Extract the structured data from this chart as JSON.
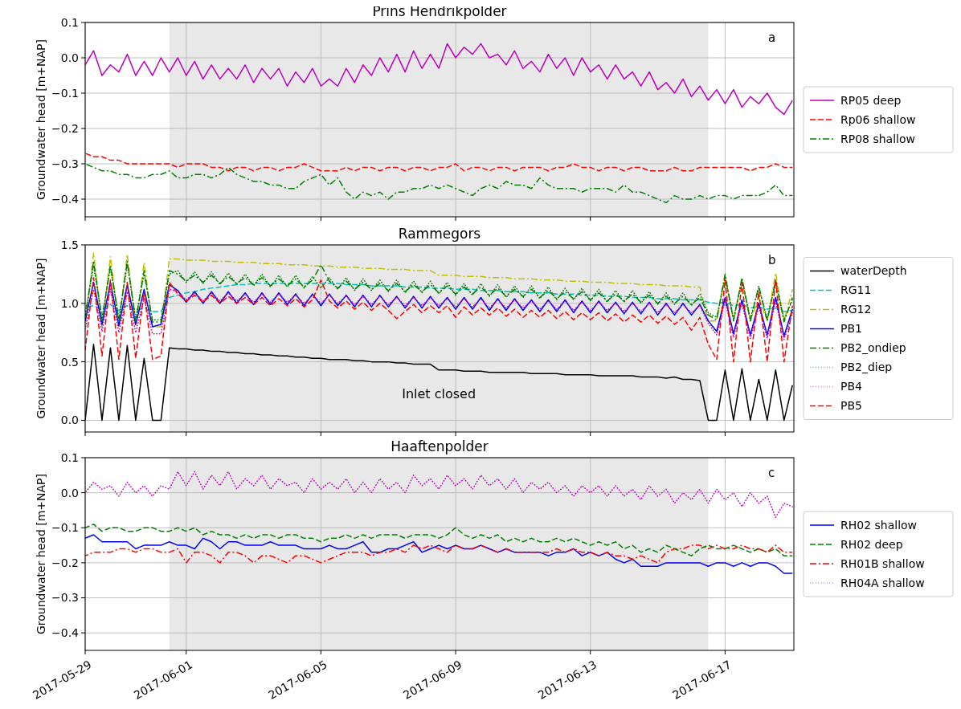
{
  "chart_data": [
    {
      "type": "line",
      "title": "Prins Hendrikpolder",
      "ylabel": "Groundwater head [m+NAP]",
      "annotations": [
        "a"
      ],
      "x": [
        "2017-05-29T00:00",
        "2017-05-29T06:00",
        "2017-05-29T12:00",
        "2017-05-29T18:00",
        "2017-05-30T00:00",
        "2017-05-30T06:00",
        "2017-05-30T12:00",
        "2017-05-30T18:00",
        "2017-05-31T00:00",
        "2017-05-31T06:00",
        "2017-05-31T12:00",
        "2017-05-31T18:00",
        "2017-06-01T00:00",
        "2017-06-01T06:00",
        "2017-06-01T12:00",
        "2017-06-01T18:00",
        "2017-06-02T00:00",
        "2017-06-02T06:00",
        "2017-06-02T12:00",
        "2017-06-02T18:00",
        "2017-06-03T00:00",
        "2017-06-03T06:00",
        "2017-06-03T12:00",
        "2017-06-03T18:00",
        "2017-06-04T00:00",
        "2017-06-04T06:00",
        "2017-06-04T12:00",
        "2017-06-04T18:00",
        "2017-06-05T00:00",
        "2017-06-05T06:00",
        "2017-06-05T12:00",
        "2017-06-05T18:00",
        "2017-06-06T00:00",
        "2017-06-06T06:00",
        "2017-06-06T12:00",
        "2017-06-06T18:00",
        "2017-06-07T00:00",
        "2017-06-07T06:00",
        "2017-06-07T12:00",
        "2017-06-07T18:00",
        "2017-06-08T00:00",
        "2017-06-08T06:00",
        "2017-06-08T12:00",
        "2017-06-08T18:00",
        "2017-06-09T00:00",
        "2017-06-09T06:00",
        "2017-06-09T12:00",
        "2017-06-09T18:00",
        "2017-06-10T00:00",
        "2017-06-10T06:00",
        "2017-06-10T12:00",
        "2017-06-10T18:00",
        "2017-06-11T00:00",
        "2017-06-11T06:00",
        "2017-06-11T12:00",
        "2017-06-11T18:00",
        "2017-06-12T00:00",
        "2017-06-12T06:00",
        "2017-06-12T12:00",
        "2017-06-12T18:00",
        "2017-06-13T00:00",
        "2017-06-13T06:00",
        "2017-06-13T12:00",
        "2017-06-13T18:00",
        "2017-06-14T00:00",
        "2017-06-14T06:00",
        "2017-06-14T12:00",
        "2017-06-14T18:00",
        "2017-06-15T00:00",
        "2017-06-15T06:00",
        "2017-06-15T12:00",
        "2017-06-15T18:00",
        "2017-06-16T00:00",
        "2017-06-16T06:00",
        "2017-06-16T12:00",
        "2017-06-16T18:00",
        "2017-06-17T00:00",
        "2017-06-17T06:00",
        "2017-06-17T12:00",
        "2017-06-17T18:00",
        "2017-06-18T00:00",
        "2017-06-18T06:00",
        "2017-06-18T12:00",
        "2017-06-18T18:00",
        "2017-06-19T00:00"
      ],
      "series": [
        {
          "name": "RP05 deep",
          "color": "#bf00bf",
          "line_style": "solid",
          "values": [
            -0.02,
            0.02,
            -0.05,
            -0.02,
            -0.04,
            0.01,
            -0.05,
            -0.01,
            -0.05,
            0.0,
            -0.04,
            0.0,
            -0.05,
            -0.01,
            -0.06,
            -0.02,
            -0.06,
            -0.03,
            -0.06,
            -0.02,
            -0.07,
            -0.03,
            -0.06,
            -0.03,
            -0.08,
            -0.04,
            -0.07,
            -0.03,
            -0.08,
            -0.06,
            -0.08,
            -0.03,
            -0.07,
            -0.02,
            -0.05,
            0.0,
            -0.04,
            0.01,
            -0.04,
            0.02,
            -0.03,
            0.01,
            -0.03,
            0.04,
            0.0,
            0.03,
            0.01,
            0.04,
            0.0,
            0.01,
            -0.02,
            0.02,
            -0.03,
            -0.01,
            -0.04,
            0.01,
            -0.03,
            0.0,
            -0.05,
            0.0,
            -0.04,
            -0.02,
            -0.06,
            -0.02,
            -0.06,
            -0.04,
            -0.08,
            -0.04,
            -0.09,
            -0.07,
            -0.1,
            -0.06,
            -0.11,
            -0.08,
            -0.12,
            -0.09,
            -0.13,
            -0.09,
            -0.14,
            -0.11,
            -0.13,
            -0.1,
            -0.14,
            -0.16,
            -0.12
          ]
        },
        {
          "name": "Rp06 shallow",
          "color": "#ff0000",
          "line_style": "dashed",
          "values": [
            -0.27,
            -0.28,
            -0.28,
            -0.29,
            -0.29,
            -0.3,
            -0.3,
            -0.3,
            -0.3,
            -0.3,
            -0.3,
            -0.31,
            -0.3,
            -0.3,
            -0.3,
            -0.31,
            -0.31,
            -0.32,
            -0.31,
            -0.31,
            -0.32,
            -0.31,
            -0.31,
            -0.32,
            -0.31,
            -0.31,
            -0.3,
            -0.31,
            -0.32,
            -0.32,
            -0.32,
            -0.31,
            -0.32,
            -0.31,
            -0.31,
            -0.32,
            -0.31,
            -0.31,
            -0.32,
            -0.31,
            -0.31,
            -0.32,
            -0.31,
            -0.31,
            -0.3,
            -0.32,
            -0.31,
            -0.31,
            -0.32,
            -0.31,
            -0.31,
            -0.32,
            -0.31,
            -0.31,
            -0.31,
            -0.32,
            -0.31,
            -0.31,
            -0.3,
            -0.31,
            -0.31,
            -0.32,
            -0.31,
            -0.31,
            -0.32,
            -0.31,
            -0.31,
            -0.32,
            -0.32,
            -0.32,
            -0.31,
            -0.32,
            -0.32,
            -0.31,
            -0.31,
            -0.31,
            -0.31,
            -0.31,
            -0.31,
            -0.32,
            -0.31,
            -0.31,
            -0.3,
            -0.31,
            -0.31
          ]
        },
        {
          "name": "RP08 shallow",
          "color": "#008000",
          "line_style": "dashdot",
          "values": [
            -0.3,
            -0.31,
            -0.32,
            -0.32,
            -0.33,
            -0.33,
            -0.34,
            -0.34,
            -0.33,
            -0.33,
            -0.32,
            -0.34,
            -0.34,
            -0.33,
            -0.33,
            -0.34,
            -0.33,
            -0.31,
            -0.33,
            -0.34,
            -0.35,
            -0.35,
            -0.36,
            -0.36,
            -0.37,
            -0.37,
            -0.35,
            -0.34,
            -0.33,
            -0.36,
            -0.34,
            -0.38,
            -0.4,
            -0.38,
            -0.39,
            -0.38,
            -0.4,
            -0.38,
            -0.38,
            -0.37,
            -0.37,
            -0.36,
            -0.37,
            -0.36,
            -0.37,
            -0.38,
            -0.39,
            -0.37,
            -0.36,
            -0.37,
            -0.35,
            -0.36,
            -0.36,
            -0.37,
            -0.34,
            -0.36,
            -0.37,
            -0.37,
            -0.37,
            -0.38,
            -0.37,
            -0.37,
            -0.37,
            -0.38,
            -0.36,
            -0.38,
            -0.38,
            -0.39,
            -0.4,
            -0.41,
            -0.39,
            -0.4,
            -0.4,
            -0.39,
            -0.4,
            -0.39,
            -0.39,
            -0.4,
            -0.39,
            -0.39,
            -0.39,
            -0.38,
            -0.36,
            -0.39,
            -0.39
          ]
        }
      ],
      "xlim": [
        "2017-05-29T00:00",
        "2017-06-19T01:00"
      ],
      "ylim": [
        -0.45,
        0.1
      ],
      "xticks": [
        {
          "value": "2017-05-29",
          "label": null
        },
        {
          "value": "2017-06-01",
          "label": null
        },
        {
          "value": "2017-06-05",
          "label": null
        },
        {
          "value": "2017-06-09",
          "label": null
        },
        {
          "value": "2017-06-13",
          "label": null
        },
        {
          "value": "2017-06-17",
          "label": null
        }
      ],
      "yticks": [
        {
          "value": -0.4,
          "label": "−0.4"
        },
        {
          "value": -0.3,
          "label": "−0.3"
        },
        {
          "value": -0.2,
          "label": "−0.2"
        },
        {
          "value": -0.1,
          "label": "−0.1"
        },
        {
          "value": 0,
          "label": "0.0"
        },
        {
          "value": 0.1,
          "label": "0.1"
        }
      ],
      "bands": [
        {
          "axis": "x",
          "from": "2017-05-31T12:00",
          "to": "2017-06-16T12:00",
          "color": "#e8e8e8"
        }
      ],
      "grid": true,
      "legend": "right",
      "tick_labels": "y"
    },
    {
      "type": "line",
      "title": "Rammegors",
      "ylabel": "Groundwater head [m+NAP]",
      "annotations": [
        "b",
        "Inlet closed"
      ],
      "x": [
        "2017-05-29T00:00",
        "2017-05-29T06:00",
        "2017-05-29T12:00",
        "2017-05-29T18:00",
        "2017-05-30T00:00",
        "2017-05-30T06:00",
        "2017-05-30T12:00",
        "2017-05-30T18:00",
        "2017-05-31T00:00",
        "2017-05-31T06:00",
        "2017-05-31T12:00",
        "2017-05-31T18:00",
        "2017-06-01T00:00",
        "2017-06-01T06:00",
        "2017-06-01T12:00",
        "2017-06-01T18:00",
        "2017-06-02T00:00",
        "2017-06-02T06:00",
        "2017-06-02T12:00",
        "2017-06-02T18:00",
        "2017-06-03T00:00",
        "2017-06-03T06:00",
        "2017-06-03T12:00",
        "2017-06-03T18:00",
        "2017-06-04T00:00",
        "2017-06-04T06:00",
        "2017-06-04T12:00",
        "2017-06-04T18:00",
        "2017-06-05T00:00",
        "2017-06-05T06:00",
        "2017-06-05T12:00",
        "2017-06-05T18:00",
        "2017-06-06T00:00",
        "2017-06-06T06:00",
        "2017-06-06T12:00",
        "2017-06-06T18:00",
        "2017-06-07T00:00",
        "2017-06-07T06:00",
        "2017-06-07T12:00",
        "2017-06-07T18:00",
        "2017-06-08T00:00",
        "2017-06-08T06:00",
        "2017-06-08T12:00",
        "2017-06-08T18:00",
        "2017-06-09T00:00",
        "2017-06-09T06:00",
        "2017-06-09T12:00",
        "2017-06-09T18:00",
        "2017-06-10T00:00",
        "2017-06-10T06:00",
        "2017-06-10T12:00",
        "2017-06-10T18:00",
        "2017-06-11T00:00",
        "2017-06-11T06:00",
        "2017-06-11T12:00",
        "2017-06-11T18:00",
        "2017-06-12T00:00",
        "2017-06-12T06:00",
        "2017-06-12T12:00",
        "2017-06-12T18:00",
        "2017-06-13T00:00",
        "2017-06-13T06:00",
        "2017-06-13T12:00",
        "2017-06-13T18:00",
        "2017-06-14T00:00",
        "2017-06-14T06:00",
        "2017-06-14T12:00",
        "2017-06-14T18:00",
        "2017-06-15T00:00",
        "2017-06-15T06:00",
        "2017-06-15T12:00",
        "2017-06-15T18:00",
        "2017-06-16T00:00",
        "2017-06-16T06:00",
        "2017-06-16T12:00",
        "2017-06-16T18:00",
        "2017-06-17T00:00",
        "2017-06-17T06:00",
        "2017-06-17T12:00",
        "2017-06-17T18:00",
        "2017-06-18T00:00",
        "2017-06-18T06:00",
        "2017-06-18T12:00",
        "2017-06-18T18:00",
        "2017-06-19T00:00"
      ],
      "series": [
        {
          "name": "waterDepth",
          "color": "#000000",
          "line_style": "solid",
          "values": [
            0,
            0.65,
            0,
            0.62,
            0,
            0.64,
            0,
            0.53,
            0,
            0,
            0.62,
            0.61,
            0.61,
            0.6,
            0.6,
            0.59,
            0.59,
            0.58,
            0.58,
            0.57,
            0.57,
            0.56,
            0.56,
            0.55,
            0.55,
            0.54,
            0.54,
            0.53,
            0.53,
            0.52,
            0.52,
            0.52,
            0.51,
            0.51,
            0.5,
            0.5,
            0.5,
            0.49,
            0.49,
            0.48,
            0.48,
            0.48,
            0.43,
            0.43,
            0.43,
            0.42,
            0.42,
            0.42,
            0.41,
            0.41,
            0.41,
            0.41,
            0.41,
            0.4,
            0.4,
            0.4,
            0.4,
            0.39,
            0.39,
            0.39,
            0.39,
            0.38,
            0.38,
            0.38,
            0.38,
            0.38,
            0.37,
            0.37,
            0.37,
            0.36,
            0.37,
            0.35,
            0.35,
            0.34,
            0,
            0,
            0.43,
            0,
            0.44,
            0,
            0.35,
            0,
            0.43,
            0,
            0.3
          ]
        },
        {
          "name": "RG11",
          "color": "#00bfbf",
          "line_style": "dashed",
          "values": [
            0.97,
            0.98,
            0.95,
            0.99,
            0.94,
            0.98,
            0.94,
            0.96,
            0.93,
            0.93,
            1.05,
            1.07,
            1.09,
            1.1,
            1.12,
            1.13,
            1.14,
            1.15,
            1.16,
            1.16,
            1.17,
            1.17,
            1.17,
            1.17,
            1.17,
            1.17,
            1.17,
            1.17,
            1.17,
            1.17,
            1.17,
            1.16,
            1.16,
            1.16,
            1.15,
            1.15,
            1.15,
            1.15,
            1.14,
            1.14,
            1.14,
            1.13,
            1.13,
            1.13,
            1.12,
            1.12,
            1.12,
            1.11,
            1.11,
            1.11,
            1.1,
            1.1,
            1.1,
            1.09,
            1.09,
            1.09,
            1.08,
            1.08,
            1.08,
            1.07,
            1.07,
            1.07,
            1.06,
            1.06,
            1.06,
            1.05,
            1.05,
            1.05,
            1.04,
            1.04,
            1.04,
            1.03,
            1.03,
            1.03,
            1.01,
            1.0,
            1.01,
            0.98,
            0.99,
            0.96,
            0.97,
            0.95,
            0.96,
            0.93,
            0.94
          ]
        },
        {
          "name": "RG12",
          "color": "#bfbf00",
          "line_style": "dashdot",
          "values": [
            0.8,
            1.43,
            0.8,
            1.4,
            0.8,
            1.42,
            0.8,
            1.35,
            0.8,
            0.8,
            1.38,
            1.38,
            1.37,
            1.37,
            1.37,
            1.36,
            1.36,
            1.36,
            1.35,
            1.35,
            1.35,
            1.34,
            1.34,
            1.34,
            1.33,
            1.33,
            1.33,
            1.32,
            1.32,
            1.32,
            1.31,
            1.31,
            1.31,
            1.3,
            1.3,
            1.3,
            1.29,
            1.29,
            1.29,
            1.28,
            1.28,
            1.28,
            1.24,
            1.24,
            1.24,
            1.23,
            1.23,
            1.23,
            1.22,
            1.22,
            1.22,
            1.21,
            1.21,
            1.21,
            1.2,
            1.2,
            1.2,
            1.19,
            1.19,
            1.19,
            1.18,
            1.18,
            1.18,
            1.17,
            1.17,
            1.17,
            1.16,
            1.16,
            1.16,
            1.15,
            1.15,
            1.15,
            1.14,
            1.14,
            0.85,
            0.85,
            1.24,
            0.85,
            1.2,
            0.85,
            1.05,
            0.85,
            1.26,
            0.85,
            1.12
          ]
        },
        {
          "name": "PB1",
          "color": "#0000ff",
          "line_style": "solid",
          "values": [
            0.85,
            1.18,
            0.82,
            1.18,
            0.81,
            1.16,
            0.82,
            1.12,
            0.8,
            0.82,
            1.16,
            1.11,
            1.01,
            1.1,
            1.0,
            1.1,
            1.0,
            1.1,
            1.0,
            1.09,
            0.99,
            1.09,
            0.99,
            1.09,
            0.99,
            1.08,
            0.98,
            1.08,
            0.98,
            1.08,
            0.98,
            1.07,
            0.97,
            1.07,
            0.97,
            1.07,
            0.97,
            1.06,
            0.96,
            1.06,
            0.96,
            1.06,
            0.96,
            1.05,
            0.95,
            1.05,
            0.95,
            1.05,
            0.94,
            1.04,
            0.94,
            1.04,
            0.94,
            1.03,
            0.93,
            1.03,
            0.93,
            1.03,
            0.92,
            1.02,
            0.92,
            1.02,
            0.92,
            1.01,
            0.91,
            1.01,
            0.91,
            1.01,
            0.9,
            1.0,
            0.9,
            1.0,
            0.9,
            0.99,
            0.85,
            0.76,
            1.05,
            0.74,
            1.03,
            0.73,
            1.0,
            0.73,
            1.05,
            0.72,
            0.95
          ]
        },
        {
          "name": "PB2_ondiep",
          "color": "#008000",
          "line_style": "dashdot",
          "values": [
            0.88,
            1.36,
            0.86,
            1.33,
            0.85,
            1.36,
            0.85,
            1.28,
            0.84,
            0.84,
            1.28,
            1.25,
            1.19,
            1.24,
            1.18,
            1.24,
            1.17,
            1.23,
            1.17,
            1.22,
            1.16,
            1.22,
            1.15,
            1.21,
            1.15,
            1.21,
            1.14,
            1.2,
            1.33,
            1.19,
            1.13,
            1.19,
            1.12,
            1.18,
            1.12,
            1.17,
            1.11,
            1.17,
            1.1,
            1.16,
            1.1,
            1.16,
            1.09,
            1.15,
            1.08,
            1.14,
            1.08,
            1.14,
            1.07,
            1.13,
            1.06,
            1.12,
            1.06,
            1.12,
            1.05,
            1.11,
            1.04,
            1.1,
            1.04,
            1.1,
            1.03,
            1.09,
            1.02,
            1.08,
            1.02,
            1.08,
            1.01,
            1.07,
            1.0,
            1.06,
            1.0,
            1.06,
            0.99,
            1.05,
            0.9,
            0.86,
            1.25,
            0.85,
            1.22,
            0.85,
            1.15,
            0.85,
            1.2,
            0.84,
            1.05
          ]
        },
        {
          "name": "PB2_diep",
          "color": "#008000",
          "line_style": "dotted",
          "values": [
            0.9,
            1.32,
            0.88,
            1.3,
            0.87,
            1.33,
            0.87,
            1.25,
            0.86,
            0.86,
            1.25,
            1.28,
            1.18,
            1.27,
            1.17,
            1.27,
            1.16,
            1.26,
            1.16,
            1.25,
            1.15,
            1.25,
            1.14,
            1.24,
            1.14,
            1.24,
            1.13,
            1.23,
            1.13,
            1.22,
            1.12,
            1.22,
            1.11,
            1.21,
            1.11,
            1.2,
            1.1,
            1.2,
            1.09,
            1.19,
            1.09,
            1.19,
            1.08,
            1.18,
            1.07,
            1.17,
            1.07,
            1.17,
            1.06,
            1.16,
            1.05,
            1.15,
            1.05,
            1.15,
            1.04,
            1.14,
            1.03,
            1.13,
            1.03,
            1.13,
            1.02,
            1.12,
            1.01,
            1.11,
            1.01,
            1.11,
            1.0,
            1.1,
            0.99,
            1.09,
            0.99,
            1.09,
            0.98,
            1.08,
            0.92,
            0.88,
            1.22,
            0.87,
            1.2,
            0.87,
            1.13,
            0.87,
            1.18,
            0.86,
            1.03
          ]
        },
        {
          "name": "PB4",
          "color": "#bf00bf",
          "line_style": "dotted",
          "values": [
            0.78,
            1.12,
            0.76,
            1.12,
            0.75,
            1.1,
            0.75,
            1.05,
            0.74,
            0.74,
            1.12,
            1.1,
            1.03,
            1.09,
            1.02,
            1.09,
            1.02,
            1.09,
            1.02,
            1.08,
            1.01,
            1.08,
            1.01,
            1.08,
            1.01,
            1.07,
            1.0,
            1.07,
            1.0,
            1.07,
            1.0,
            1.06,
            0.99,
            1.06,
            0.99,
            1.06,
            0.99,
            1.05,
            0.98,
            1.05,
            0.98,
            1.05,
            0.98,
            1.04,
            0.97,
            1.04,
            0.97,
            1.04,
            0.96,
            1.03,
            0.96,
            1.03,
            0.96,
            1.02,
            0.95,
            1.02,
            0.95,
            1.02,
            0.94,
            1.01,
            0.94,
            1.01,
            0.94,
            1.0,
            0.93,
            1.0,
            0.93,
            1.0,
            0.92,
            0.99,
            0.92,
            0.99,
            0.92,
            0.98,
            0.83,
            0.73,
            1.02,
            0.71,
            1.0,
            0.7,
            0.97,
            0.7,
            1.02,
            0.69,
            0.92
          ]
        },
        {
          "name": "PB5",
          "color": "#ff0000",
          "line_style": "dashed",
          "values": [
            0.6,
            1.22,
            0.55,
            1.2,
            0.52,
            1.18,
            0.53,
            1.1,
            0.52,
            0.55,
            1.18,
            1.08,
            1.02,
            1.07,
            1.01,
            1.07,
            1.0,
            1.06,
            1.0,
            1.05,
            0.99,
            1.05,
            0.98,
            1.04,
            0.98,
            1.04,
            0.97,
            1.03,
            1.2,
            1.02,
            0.96,
            1.02,
            0.95,
            1.01,
            0.94,
            1.0,
            0.94,
            0.87,
            0.93,
            0.99,
            0.92,
            0.98,
            0.92,
            0.98,
            0.88,
            0.97,
            0.9,
            0.96,
            0.9,
            0.96,
            0.89,
            0.95,
            0.88,
            0.94,
            0.88,
            0.94,
            0.87,
            0.93,
            0.86,
            0.92,
            0.86,
            0.92,
            0.85,
            0.91,
            0.84,
            0.9,
            0.84,
            0.9,
            0.83,
            0.89,
            0.82,
            0.88,
            0.77,
            0.88,
            0.65,
            0.52,
            1.2,
            0.5,
            1.18,
            0.5,
            1.1,
            0.5,
            1.2,
            0.5,
            0.98
          ]
        }
      ],
      "xlim": [
        "2017-05-29T00:00",
        "2017-06-19T01:00"
      ],
      "ylim": [
        -0.1,
        1.5
      ],
      "xticks": [
        {
          "value": "2017-05-29",
          "label": null
        },
        {
          "value": "2017-06-01",
          "label": null
        },
        {
          "value": "2017-06-05",
          "label": null
        },
        {
          "value": "2017-06-09",
          "label": null
        },
        {
          "value": "2017-06-13",
          "label": null
        },
        {
          "value": "2017-06-17",
          "label": null
        }
      ],
      "yticks": [
        {
          "value": 0,
          "label": "0.0"
        },
        {
          "value": 0.5,
          "label": "0.5"
        },
        {
          "value": 1,
          "label": "1.0"
        },
        {
          "value": 1.5,
          "label": "1.5"
        }
      ],
      "bands": [
        {
          "axis": "x",
          "from": "2017-05-31T12:00",
          "to": "2017-06-16T12:00",
          "color": "#e8e8e8"
        }
      ],
      "grid": true,
      "legend": "right",
      "tick_labels": "y"
    },
    {
      "type": "line",
      "title": "Haaftenpolder",
      "ylabel": "Groundwater head [m+NAP]",
      "annotations": [
        "c"
      ],
      "x": [
        "2017-05-29T00:00",
        "2017-05-29T06:00",
        "2017-05-29T12:00",
        "2017-05-29T18:00",
        "2017-05-30T00:00",
        "2017-05-30T06:00",
        "2017-05-30T12:00",
        "2017-05-30T18:00",
        "2017-05-31T00:00",
        "2017-05-31T06:00",
        "2017-05-31T12:00",
        "2017-05-31T18:00",
        "2017-06-01T00:00",
        "2017-06-01T06:00",
        "2017-06-01T12:00",
        "2017-06-01T18:00",
        "2017-06-02T00:00",
        "2017-06-02T06:00",
        "2017-06-02T12:00",
        "2017-06-02T18:00",
        "2017-06-03T00:00",
        "2017-06-03T06:00",
        "2017-06-03T12:00",
        "2017-06-03T18:00",
        "2017-06-04T00:00",
        "2017-06-04T06:00",
        "2017-06-04T12:00",
        "2017-06-04T18:00",
        "2017-06-05T00:00",
        "2017-06-05T06:00",
        "2017-06-05T12:00",
        "2017-06-05T18:00",
        "2017-06-06T00:00",
        "2017-06-06T06:00",
        "2017-06-06T12:00",
        "2017-06-06T18:00",
        "2017-06-07T00:00",
        "2017-06-07T06:00",
        "2017-06-07T12:00",
        "2017-06-07T18:00",
        "2017-06-08T00:00",
        "2017-06-08T06:00",
        "2017-06-08T12:00",
        "2017-06-08T18:00",
        "2017-06-09T00:00",
        "2017-06-09T06:00",
        "2017-06-09T12:00",
        "2017-06-09T18:00",
        "2017-06-10T00:00",
        "2017-06-10T06:00",
        "2017-06-10T12:00",
        "2017-06-10T18:00",
        "2017-06-11T00:00",
        "2017-06-11T06:00",
        "2017-06-11T12:00",
        "2017-06-11T18:00",
        "2017-06-12T00:00",
        "2017-06-12T06:00",
        "2017-06-12T12:00",
        "2017-06-12T18:00",
        "2017-06-13T00:00",
        "2017-06-13T06:00",
        "2017-06-13T12:00",
        "2017-06-13T18:00",
        "2017-06-14T00:00",
        "2017-06-14T06:00",
        "2017-06-14T12:00",
        "2017-06-14T18:00",
        "2017-06-15T00:00",
        "2017-06-15T06:00",
        "2017-06-15T12:00",
        "2017-06-15T18:00",
        "2017-06-16T00:00",
        "2017-06-16T06:00",
        "2017-06-16T12:00",
        "2017-06-16T18:00",
        "2017-06-17T00:00",
        "2017-06-17T06:00",
        "2017-06-17T12:00",
        "2017-06-17T18:00",
        "2017-06-18T00:00",
        "2017-06-18T06:00",
        "2017-06-18T12:00",
        "2017-06-18T18:00",
        "2017-06-19T00:00"
      ],
      "series": [
        {
          "name": "RH02 shallow",
          "color": "#0000ff",
          "line_style": "solid",
          "values": [
            -0.13,
            -0.12,
            -0.14,
            -0.14,
            -0.14,
            -0.14,
            -0.16,
            -0.15,
            -0.15,
            -0.15,
            -0.14,
            -0.15,
            -0.15,
            -0.16,
            -0.13,
            -0.14,
            -0.16,
            -0.14,
            -0.14,
            -0.15,
            -0.15,
            -0.15,
            -0.14,
            -0.15,
            -0.15,
            -0.15,
            -0.16,
            -0.16,
            -0.16,
            -0.15,
            -0.16,
            -0.16,
            -0.15,
            -0.14,
            -0.17,
            -0.17,
            -0.16,
            -0.16,
            -0.15,
            -0.14,
            -0.17,
            -0.16,
            -0.15,
            -0.16,
            -0.15,
            -0.16,
            -0.16,
            -0.15,
            -0.16,
            -0.17,
            -0.16,
            -0.17,
            -0.17,
            -0.17,
            -0.17,
            -0.18,
            -0.17,
            -0.17,
            -0.16,
            -0.18,
            -0.17,
            -0.18,
            -0.17,
            -0.19,
            -0.2,
            -0.19,
            -0.21,
            -0.21,
            -0.21,
            -0.2,
            -0.2,
            -0.2,
            -0.2,
            -0.2,
            -0.21,
            -0.2,
            -0.2,
            -0.21,
            -0.2,
            -0.21,
            -0.2,
            -0.2,
            -0.21,
            -0.23,
            -0.23
          ]
        },
        {
          "name": "RH02 deep",
          "color": "#008000",
          "line_style": "dashed",
          "values": [
            -0.1,
            -0.09,
            -0.11,
            -0.1,
            -0.1,
            -0.11,
            -0.11,
            -0.1,
            -0.1,
            -0.11,
            -0.11,
            -0.1,
            -0.11,
            -0.1,
            -0.12,
            -0.11,
            -0.12,
            -0.12,
            -0.13,
            -0.12,
            -0.13,
            -0.12,
            -0.12,
            -0.13,
            -0.12,
            -0.12,
            -0.13,
            -0.13,
            -0.14,
            -0.13,
            -0.13,
            -0.12,
            -0.13,
            -0.12,
            -0.13,
            -0.12,
            -0.12,
            -0.12,
            -0.13,
            -0.12,
            -0.12,
            -0.12,
            -0.13,
            -0.12,
            -0.1,
            -0.12,
            -0.13,
            -0.12,
            -0.13,
            -0.12,
            -0.14,
            -0.13,
            -0.14,
            -0.13,
            -0.14,
            -0.14,
            -0.13,
            -0.14,
            -0.13,
            -0.14,
            -0.15,
            -0.14,
            -0.15,
            -0.14,
            -0.16,
            -0.15,
            -0.17,
            -0.16,
            -0.17,
            -0.15,
            -0.16,
            -0.17,
            -0.18,
            -0.16,
            -0.15,
            -0.16,
            -0.16,
            -0.15,
            -0.16,
            -0.17,
            -0.16,
            -0.17,
            -0.16,
            -0.18,
            -0.18
          ]
        },
        {
          "name": "RH01B shallow",
          "color": "#ff0000",
          "line_style": "dashdot",
          "values": [
            -0.18,
            -0.17,
            -0.17,
            -0.17,
            -0.16,
            -0.16,
            -0.17,
            -0.16,
            -0.16,
            -0.17,
            -0.17,
            -0.16,
            -0.2,
            -0.17,
            -0.17,
            -0.18,
            -0.2,
            -0.17,
            -0.17,
            -0.18,
            -0.2,
            -0.18,
            -0.18,
            -0.19,
            -0.2,
            -0.18,
            -0.18,
            -0.19,
            -0.2,
            -0.19,
            -0.18,
            -0.17,
            -0.17,
            -0.17,
            -0.18,
            -0.17,
            -0.17,
            -0.16,
            -0.17,
            -0.15,
            -0.16,
            -0.15,
            -0.16,
            -0.17,
            -0.15,
            -0.16,
            -0.16,
            -0.15,
            -0.16,
            -0.17,
            -0.16,
            -0.17,
            -0.17,
            -0.17,
            -0.17,
            -0.17,
            -0.16,
            -0.17,
            -0.16,
            -0.17,
            -0.17,
            -0.18,
            -0.17,
            -0.18,
            -0.18,
            -0.19,
            -0.18,
            -0.19,
            -0.2,
            -0.17,
            -0.16,
            -0.16,
            -0.15,
            -0.15,
            -0.16,
            -0.15,
            -0.16,
            -0.16,
            -0.15,
            -0.16,
            -0.16,
            -0.17,
            -0.15,
            -0.17,
            -0.17
          ]
        },
        {
          "name": "RH04A shallow",
          "color": "#bf00bf",
          "line_style": "dotted",
          "values": [
            0.0,
            0.03,
            0.01,
            0.02,
            -0.01,
            0.03,
            0.0,
            0.02,
            -0.01,
            0.02,
            0.01,
            0.06,
            0.02,
            0.06,
            0.01,
            0.05,
            0.02,
            0.06,
            0.01,
            0.04,
            0.02,
            0.05,
            0.01,
            0.04,
            0.02,
            0.03,
            0.0,
            0.04,
            0.01,
            0.03,
            0.01,
            0.04,
            0.0,
            0.03,
            0.0,
            0.04,
            0.01,
            0.03,
            0.0,
            0.05,
            0.02,
            0.04,
            0.01,
            0.05,
            0.02,
            0.04,
            0.01,
            0.05,
            0.02,
            0.04,
            0.01,
            0.04,
            0.0,
            0.03,
            0.01,
            0.03,
            0.0,
            0.02,
            -0.01,
            0.02,
            0.0,
            0.02,
            -0.01,
            0.02,
            -0.01,
            0.01,
            -0.02,
            0.02,
            -0.01,
            0.01,
            -0.03,
            0.0,
            -0.02,
            0.01,
            -0.03,
            0.01,
            -0.02,
            0.0,
            -0.04,
            0.0,
            -0.03,
            -0.01,
            -0.07,
            -0.03,
            -0.04
          ]
        }
      ],
      "xlim": [
        "2017-05-29T00:00",
        "2017-06-19T01:00"
      ],
      "ylim": [
        -0.45,
        0.1
      ],
      "xticks": [
        {
          "value": "2017-05-29",
          "label": "2017-05-29"
        },
        {
          "value": "2017-06-01",
          "label": "2017-06-01"
        },
        {
          "value": "2017-06-05",
          "label": "2017-06-05"
        },
        {
          "value": "2017-06-09",
          "label": "2017-06-09"
        },
        {
          "value": "2017-06-13",
          "label": "2017-06-13"
        },
        {
          "value": "2017-06-17",
          "label": "2017-06-17"
        }
      ],
      "yticks": [
        {
          "value": -0.4,
          "label": "−0.4"
        },
        {
          "value": -0.3,
          "label": "−0.3"
        },
        {
          "value": -0.2,
          "label": "−0.2"
        },
        {
          "value": -0.1,
          "label": "−0.1"
        },
        {
          "value": 0,
          "label": "0.0"
        },
        {
          "value": 0.1,
          "label": "0.1"
        }
      ],
      "bands": [
        {
          "axis": "x",
          "from": "2017-05-31T12:00",
          "to": "2017-06-16T12:00",
          "color": "#e8e8e8"
        }
      ],
      "grid": true,
      "legend": "right"
    }
  ]
}
